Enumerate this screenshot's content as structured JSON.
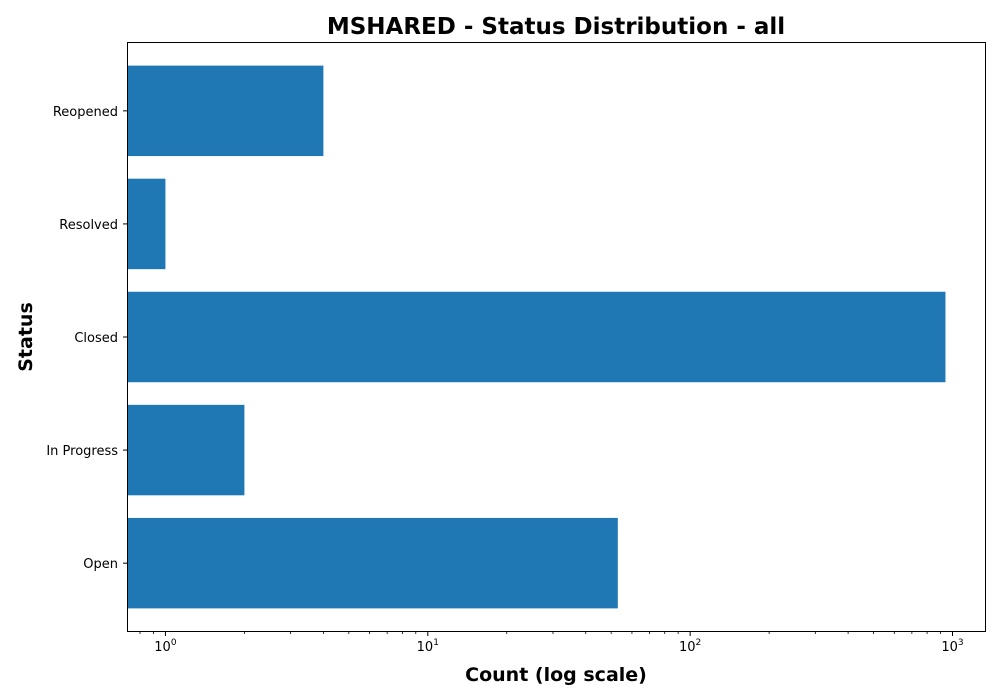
{
  "chart_data": {
    "type": "bar",
    "orientation": "horizontal",
    "title": "MSHARED - Status Distribution - all",
    "xlabel": "Count (log scale)",
    "ylabel": "Status",
    "x_scale": "log",
    "xlim": [
      0.72,
      1330
    ],
    "x_ticks": [
      {
        "base": "10",
        "exp": "0",
        "value": 1
      },
      {
        "base": "10",
        "exp": "1",
        "value": 10
      },
      {
        "base": "10",
        "exp": "2",
        "value": 100
      },
      {
        "base": "10",
        "exp": "3",
        "value": 1000
      }
    ],
    "categories": [
      "Open",
      "In Progress",
      "Closed",
      "Resolved",
      "Reopened"
    ],
    "values": [
      53,
      2,
      940,
      1,
      4
    ],
    "bar_color": "#1f77b4",
    "grid": false,
    "legend": "none"
  }
}
